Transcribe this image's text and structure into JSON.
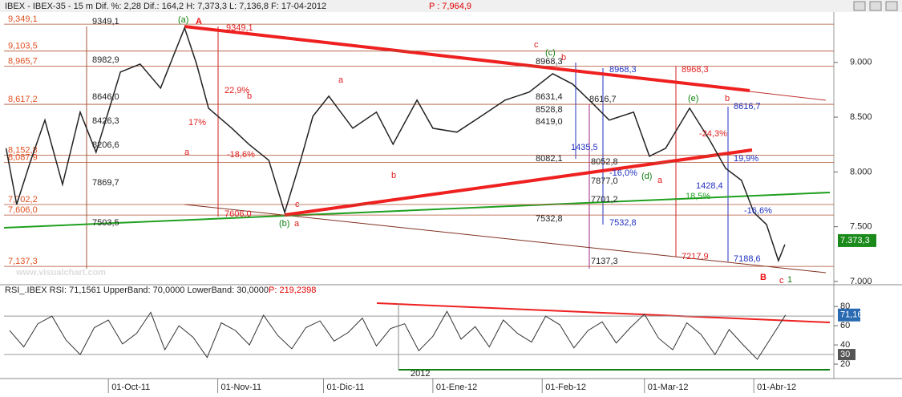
{
  "header": {
    "info": "IBEX - IBEX-35 - 15 m Dif. %: 2,28 Dif.: 164,2 H: 7,373,3 L: 7,136,8 F: 17-04-2012",
    "p": "P : 7,964,9",
    "watermark": "www.visualchart.com"
  },
  "chart_data": [
    {
      "type": "line",
      "color": "#222222",
      "x": [
        -29,
        -26,
        -22,
        -18,
        -13,
        -8,
        -3.5,
        3.4,
        9,
        14.8,
        21.6,
        25,
        28.4,
        35,
        39.8,
        45.5,
        50,
        54.5,
        58,
        62.5,
        69.3,
        76,
        80.7,
        87.5,
        92,
        98.8,
        105.7,
        112.5,
        119.3,
        126,
        131.6,
        137.5,
        142,
        148.9,
        153.4,
        158,
        164.8,
        170.5,
        175,
        179.5,
        183,
        186.6,
        190,
        191.8
      ],
      "values": [
        8216,
        7703,
        8106,
        8473,
        7886,
        8546,
        8180,
        8912,
        8985,
        8766,
        9315,
        8985,
        8582,
        8399,
        8253,
        8106,
        7630,
        8106,
        8509,
        8692,
        8399,
        8546,
        8253,
        8656,
        8399,
        8363,
        8509,
        8656,
        8729,
        8897,
        8802,
        8619,
        8473,
        8546,
        8143,
        8216,
        8582,
        8289,
        8033,
        7923,
        7630,
        7520,
        7190,
        7337
      ],
      "xlim": [
        -29.6,
        205.7
      ],
      "ylim": [
        6970,
        9460
      ],
      "yticks": [
        {
          "value": 7000,
          "label": "7.000"
        },
        {
          "value": 7500,
          "label": "7.500"
        },
        {
          "value": 8000,
          "label": "8.000"
        },
        {
          "value": 8500,
          "label": "8.500"
        },
        {
          "value": 9000,
          "label": "9.000"
        }
      ],
      "current": {
        "value": 7373.3,
        "label": "7.373,3"
      },
      "levels": [
        {
          "value": 9349.1,
          "label": "9,349,1"
        },
        {
          "value": 9103.5,
          "label": "9,103,5"
        },
        {
          "value": 8965.7,
          "label": "8,965,7"
        },
        {
          "value": 8617.2,
          "label": "8,617,2"
        },
        {
          "value": 8152.8,
          "label": "8,152,8"
        },
        {
          "value": 8087.9,
          "label": "8,087,9"
        },
        {
          "value": 7702.2,
          "label": "7,702,2"
        },
        {
          "value": 7606.0,
          "label": "7,606,0"
        },
        {
          "value": 7137.3,
          "label": "7,137,3"
        }
      ],
      "annotations": [
        "(a)",
        "A",
        "9349,1",
        "9349,1",
        "8982,9",
        "8646,0",
        "8426,3",
        "8206,6",
        "7869,7",
        "7503,5",
        "22,9%",
        "b",
        "17%",
        "a",
        "-18,6%",
        "a",
        "b",
        "c",
        "7606,0",
        "(b)",
        "a",
        "c",
        "(c)",
        "b",
        "8968,3",
        "8968,3",
        "8968,3",
        "8631,4",
        "8528,8",
        "8419,0",
        "1435,5",
        "8082,1",
        "8616,7",
        "(e)",
        "b",
        "8616,7",
        "-24,3%",
        "19,9%",
        "8052,8",
        "-16,0%",
        "(d)",
        "a",
        "7877,0",
        "1428,4",
        "7701,2",
        "18,5%",
        "-16,6%",
        "7532,8",
        "7532,8",
        "7217,9",
        "7188,6",
        "7137,3",
        "B",
        "c",
        "1"
      ]
    },
    {
      "type": "line",
      "title": "RSI_.IBEX RSI: 71,1561 UpperBand: 70,0000 LowerBand: 30,0000",
      "subtitle": "P: 219,2398",
      "color": "#333333",
      "x": [
        -28,
        -24,
        -20,
        -16,
        -12,
        -8,
        -4,
        0,
        4,
        8,
        12,
        16,
        20,
        24,
        28,
        32,
        36,
        40,
        44,
        48,
        52,
        56,
        60,
        64,
        68,
        72,
        76,
        80,
        84,
        88,
        92,
        96,
        100,
        104,
        108,
        112,
        116,
        120,
        124,
        128,
        132,
        136,
        140,
        144,
        148,
        152,
        156,
        160,
        164,
        168,
        172,
        176,
        180,
        184,
        188,
        192
      ],
      "values": [
        55,
        38,
        62,
        70,
        45,
        30,
        58,
        66,
        41,
        52,
        74,
        35,
        60,
        48,
        27,
        63,
        55,
        40,
        71,
        50,
        36,
        58,
        65,
        44,
        53,
        68,
        39,
        57,
        62,
        34,
        49,
        75,
        46,
        59,
        38,
        66,
        52,
        43,
        70,
        61,
        37,
        55,
        64,
        42,
        58,
        72,
        47,
        35,
        63,
        51,
        30,
        56,
        40,
        25,
        48,
        71.16
      ],
      "xlim": [
        -29.6,
        205.7
      ],
      "ylim": [
        5,
        86
      ],
      "yticks": [
        20,
        40,
        60,
        80
      ],
      "bands": [
        70,
        30
      ],
      "current": {
        "value": 71.16,
        "label": "71,16"
      },
      "year": "2012",
      "xticks": [
        {
          "value": 0,
          "label": "01-Oct-11"
        },
        {
          "value": 31,
          "label": "01-Nov-11"
        },
        {
          "value": 61,
          "label": "01-Dic-11"
        },
        {
          "value": 92,
          "label": "01-Ene-12"
        },
        {
          "value": 123,
          "label": "01-Feb-12"
        },
        {
          "value": 152,
          "label": "01-Mar-12"
        },
        {
          "value": 183,
          "label": "01-Abr-12"
        }
      ]
    }
  ]
}
